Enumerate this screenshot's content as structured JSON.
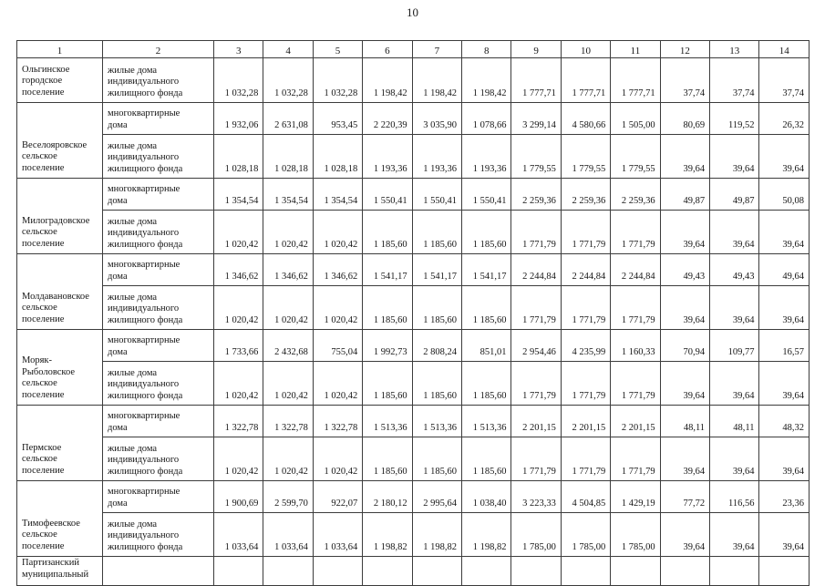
{
  "page_number": "10",
  "table": {
    "column_headers": [
      "1",
      "2",
      "3",
      "4",
      "5",
      "6",
      "7",
      "8",
      "9",
      "10",
      "11",
      "12",
      "13",
      "14"
    ],
    "rows": [
      {
        "settlement": "Ольгинское городское поселение",
        "settlement_rowspan": 1,
        "housing_type": "жилые дома индивидуального жилищного фонда",
        "kind": "individual",
        "tall": true,
        "values": [
          "1 032,28",
          "1 032,28",
          "1 032,28",
          "1 198,42",
          "1 198,42",
          "1 198,42",
          "1 777,71",
          "1 777,71",
          "1 777,71",
          "37,74",
          "37,74",
          "37,74"
        ]
      },
      {
        "settlement": "Веселояровское сельское поселение",
        "settlement_rowspan": 2,
        "housing_type": "многоквартирные дома",
        "kind": "apartment",
        "values": [
          "1 932,06",
          "2 631,08",
          "953,45",
          "2 220,39",
          "3 035,90",
          "1 078,66",
          "3 299,14",
          "4 580,66",
          "1 505,00",
          "80,69",
          "119,52",
          "26,32"
        ]
      },
      {
        "housing_type": "жилые дома индивидуального жилищного фонда",
        "kind": "individual",
        "values": [
          "1 028,18",
          "1 028,18",
          "1 028,18",
          "1 193,36",
          "1 193,36",
          "1 193,36",
          "1 779,55",
          "1 779,55",
          "1 779,55",
          "39,64",
          "39,64",
          "39,64"
        ]
      },
      {
        "settlement": "Милоградовское сельское поселение",
        "settlement_rowspan": 2,
        "housing_type": "многоквартирные дома",
        "kind": "apartment",
        "values": [
          "1 354,54",
          "1 354,54",
          "1 354,54",
          "1 550,41",
          "1 550,41",
          "1 550,41",
          "2 259,36",
          "2 259,36",
          "2 259,36",
          "49,87",
          "49,87",
          "50,08"
        ]
      },
      {
        "housing_type": "жилые дома индивидуального жилищного фонда",
        "kind": "individual",
        "values": [
          "1 020,42",
          "1 020,42",
          "1 020,42",
          "1 185,60",
          "1 185,60",
          "1 185,60",
          "1 771,79",
          "1 771,79",
          "1 771,79",
          "39,64",
          "39,64",
          "39,64"
        ]
      },
      {
        "settlement": "Молдавановское сельское поселение",
        "settlement_rowspan": 2,
        "housing_type": "многоквартирные дома",
        "kind": "apartment",
        "values": [
          "1 346,62",
          "1 346,62",
          "1 346,62",
          "1 541,17",
          "1 541,17",
          "1 541,17",
          "2 244,84",
          "2 244,84",
          "2 244,84",
          "49,43",
          "49,43",
          "49,64"
        ]
      },
      {
        "housing_type": "жилые дома индивидуального жилищного фонда",
        "kind": "individual",
        "values": [
          "1 020,42",
          "1 020,42",
          "1 020,42",
          "1 185,60",
          "1 185,60",
          "1 185,60",
          "1 771,79",
          "1 771,79",
          "1 771,79",
          "39,64",
          "39,64",
          "39,64"
        ]
      },
      {
        "settlement": "Моряк-Рыболовское сельское поселение",
        "settlement_rowspan": 2,
        "housing_type": "многоквартирные дома",
        "kind": "apartment",
        "values": [
          "1 733,66",
          "2 432,68",
          "755,04",
          "1 992,73",
          "2 808,24",
          "851,01",
          "2 954,46",
          "4 235,99",
          "1 160,33",
          "70,94",
          "109,77",
          "16,57"
        ]
      },
      {
        "housing_type": "жилые дома индивидуального жилищного фонда",
        "kind": "individual",
        "values": [
          "1 020,42",
          "1 020,42",
          "1 020,42",
          "1 185,60",
          "1 185,60",
          "1 185,60",
          "1 771,79",
          "1 771,79",
          "1 771,79",
          "39,64",
          "39,64",
          "39,64"
        ]
      },
      {
        "settlement": "Пермское сельское поселение",
        "settlement_rowspan": 2,
        "housing_type": "многоквартирные дома",
        "kind": "apartment",
        "values": [
          "1 322,78",
          "1 322,78",
          "1 322,78",
          "1 513,36",
          "1 513,36",
          "1 513,36",
          "2 201,15",
          "2 201,15",
          "2 201,15",
          "48,11",
          "48,11",
          "48,32"
        ]
      },
      {
        "housing_type": "жилые дома индивидуального жилищного фонда",
        "kind": "individual",
        "values": [
          "1 020,42",
          "1 020,42",
          "1 020,42",
          "1 185,60",
          "1 185,60",
          "1 185,60",
          "1 771,79",
          "1 771,79",
          "1 771,79",
          "39,64",
          "39,64",
          "39,64"
        ]
      },
      {
        "settlement": "Тимофеевское сельское поселение",
        "settlement_rowspan": 2,
        "housing_type": "многоквартирные дома",
        "kind": "apartment",
        "values": [
          "1 900,69",
          "2 599,70",
          "922,07",
          "2 180,12",
          "2 995,64",
          "1 038,40",
          "3 223,33",
          "4 504,85",
          "1 429,19",
          "77,72",
          "116,56",
          "23,36"
        ]
      },
      {
        "housing_type": "жилые дома индивидуального жилищного фонда",
        "kind": "individual",
        "values": [
          "1 033,64",
          "1 033,64",
          "1 033,64",
          "1 198,82",
          "1 198,82",
          "1 198,82",
          "1 785,00",
          "1 785,00",
          "1 785,00",
          "39,64",
          "39,64",
          "39,64"
        ]
      },
      {
        "settlement": "Партизанский муниципальный",
        "settlement_rowspan": 1,
        "housing_type": "",
        "kind": "cutoff",
        "values": [
          "",
          "",
          "",
          "",
          "",
          "",
          "",
          "",
          "",
          "",
          "",
          ""
        ]
      }
    ]
  }
}
